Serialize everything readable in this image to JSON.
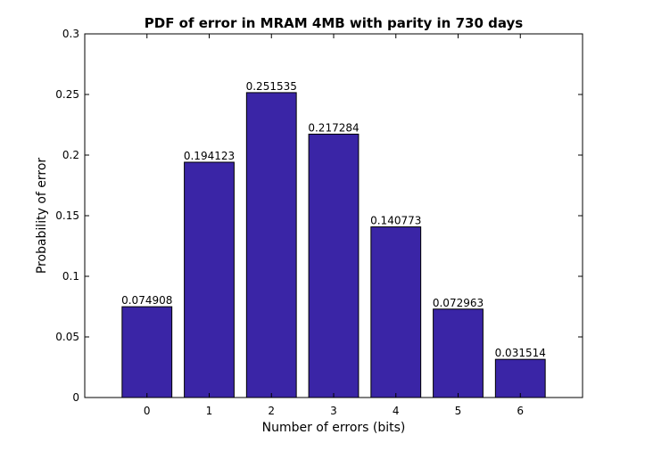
{
  "chart_data": {
    "type": "bar",
    "title": "PDF of error in MRAM 4MB with parity in 730 days",
    "xlabel": "Number of errors (bits)",
    "ylabel": "Probability of error",
    "categories": [
      "0",
      "1",
      "2",
      "3",
      "4",
      "5",
      "6"
    ],
    "values": [
      0.074908,
      0.194123,
      0.251535,
      0.217284,
      0.140773,
      0.072963,
      0.031514
    ],
    "data_labels": [
      "0.074908",
      "0.194123",
      "0.251535",
      "0.217284",
      "0.140773",
      "0.072963",
      "0.031514"
    ],
    "xlim": [
      -1,
      7
    ],
    "ylim": [
      0,
      0.3
    ],
    "yticks": [
      0,
      0.05,
      0.1,
      0.15,
      0.2,
      0.25,
      0.3
    ],
    "ytick_labels": [
      "0",
      "0.05",
      "0.1",
      "0.15",
      "0.2",
      "0.25",
      "0.3"
    ],
    "grid": false,
    "legend": "none",
    "bar_color": "#3a25a6"
  }
}
